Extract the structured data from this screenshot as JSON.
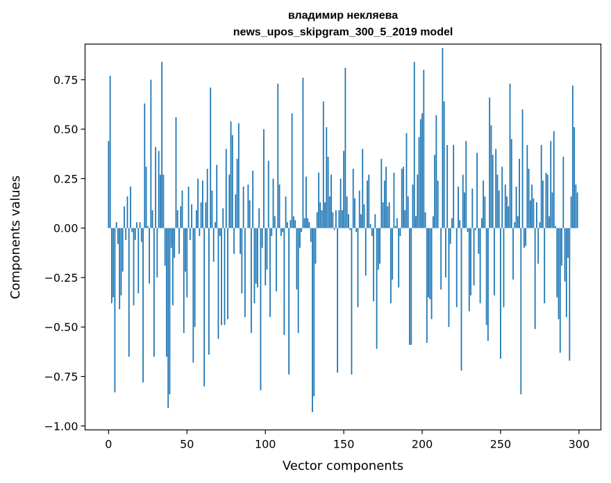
{
  "chart_data": {
    "type": "bar",
    "title_line1": "владимир некляева",
    "title_line2": "news_upos_skipgram_300_5_2019 model",
    "xlabel": "Vector components",
    "ylabel": "Components values",
    "xlim": [
      -15,
      314
    ],
    "ylim": [
      -1.02,
      0.93
    ],
    "xticks": [
      0,
      50,
      100,
      150,
      200,
      250,
      300
    ],
    "xtick_labels": [
      "0",
      "50",
      "100",
      "150",
      "200",
      "250",
      "300"
    ],
    "yticks": [
      -1.0,
      -0.75,
      -0.5,
      -0.25,
      0.0,
      0.25,
      0.5,
      0.75
    ],
    "ytick_labels": [
      "−1.00",
      "−0.75",
      "−0.50",
      "−0.25",
      "0.00",
      "0.25",
      "0.50",
      "0.75"
    ],
    "grid": false,
    "legend": "none",
    "bar_color": "#1f77b4",
    "x": [
      0,
      1,
      2,
      3,
      4,
      5,
      6,
      7,
      8,
      9,
      10,
      11,
      12,
      13,
      14,
      15,
      16,
      17,
      18,
      19,
      20,
      21,
      22,
      23,
      24,
      25,
      26,
      27,
      28,
      29,
      30,
      31,
      32,
      33,
      34,
      35,
      36,
      37,
      38,
      39,
      40,
      41,
      42,
      43,
      44,
      45,
      46,
      47,
      48,
      49,
      50,
      51,
      52,
      53,
      54,
      55,
      56,
      57,
      58,
      59,
      60,
      61,
      62,
      63,
      64,
      65,
      66,
      67,
      68,
      69,
      70,
      71,
      72,
      73,
      74,
      75,
      76,
      77,
      78,
      79,
      80,
      81,
      82,
      83,
      84,
      85,
      86,
      87,
      88,
      89,
      90,
      91,
      92,
      93,
      94,
      95,
      96,
      97,
      98,
      99,
      100,
      101,
      102,
      103,
      104,
      105,
      106,
      107,
      108,
      109,
      110,
      111,
      112,
      113,
      114,
      115,
      116,
      117,
      118,
      119,
      120,
      121,
      122,
      123,
      124,
      125,
      126,
      127,
      128,
      129,
      130,
      131,
      132,
      133,
      134,
      135,
      136,
      137,
      138,
      139,
      140,
      141,
      142,
      143,
      144,
      145,
      146,
      147,
      148,
      149,
      150,
      151,
      152,
      153,
      154,
      155,
      156,
      157,
      158,
      159,
      160,
      161,
      162,
      163,
      164,
      165,
      166,
      167,
      168,
      169,
      170,
      171,
      172,
      173,
      174,
      175,
      176,
      177,
      178,
      179,
      180,
      181,
      182,
      183,
      184,
      185,
      186,
      187,
      188,
      189,
      190,
      191,
      192,
      193,
      194,
      195,
      196,
      197,
      198,
      199,
      200,
      201,
      202,
      203,
      204,
      205,
      206,
      207,
      208,
      209,
      210,
      211,
      212,
      213,
      214,
      215,
      216,
      217,
      218,
      219,
      220,
      221,
      222,
      223,
      224,
      225,
      226,
      227,
      228,
      229,
      230,
      231,
      232,
      233,
      234,
      235,
      236,
      237,
      238,
      239,
      240,
      241,
      242,
      243,
      244,
      245,
      246,
      247,
      248,
      249,
      250,
      251,
      252,
      253,
      254,
      255,
      256,
      257,
      258,
      259,
      260,
      261,
      262,
      263,
      264,
      265,
      266,
      267,
      268,
      269,
      270,
      271,
      272,
      273,
      274,
      275,
      276,
      277,
      278,
      279,
      280,
      281,
      282,
      283,
      284,
      285,
      286,
      287,
      288,
      289,
      290,
      291,
      292,
      293,
      294,
      295,
      296,
      297,
      298,
      299
    ],
    "values": [
      0.44,
      0.77,
      -0.38,
      -0.35,
      -0.83,
      0.03,
      -0.08,
      -0.41,
      -0.34,
      -0.22,
      0.11,
      -0.06,
      0.16,
      -0.65,
      0.21,
      -0.02,
      -0.39,
      -0.06,
      0.03,
      -0.33,
      0.03,
      -0.07,
      -0.78,
      0.63,
      0.31,
      0.01,
      -0.28,
      0.75,
      0.09,
      -0.65,
      0.41,
      -0.25,
      0.39,
      0.27,
      0.84,
      0.27,
      -0.19,
      -0.65,
      -0.91,
      -0.84,
      -0.1,
      -0.39,
      -0.15,
      0.56,
      0.09,
      -0.13,
      0.11,
      0.19,
      -0.53,
      -0.22,
      -0.35,
      0.21,
      -0.06,
      0.12,
      -0.68,
      -0.5,
      0.09,
      0.25,
      -0.04,
      0.13,
      0.24,
      -0.8,
      0.13,
      0.3,
      -0.64,
      0.71,
      0.19,
      -0.17,
      0.03,
      0.32,
      -0.56,
      -0.04,
      -0.49,
      0.1,
      -0.49,
      0.4,
      -0.46,
      0.27,
      0.54,
      0.47,
      -0.13,
      0.17,
      0.35,
      0.53,
      -0.13,
      -0.33,
      0.21,
      -0.45,
      0.0,
      0.22,
      0.14,
      -0.53,
      0.29,
      -0.38,
      -0.28,
      -0.3,
      0.1,
      -0.82,
      -0.1,
      0.5,
      -0.29,
      -0.21,
      0.34,
      -0.45,
      -0.04,
      0.25,
      0.06,
      -0.32,
      0.73,
      0.22,
      -0.04,
      -0.02,
      -0.54,
      0.16,
      0.03,
      -0.74,
      0.04,
      0.58,
      0.06,
      0.04,
      -0.31,
      -0.53,
      -0.1,
      -0.02,
      0.76,
      0.05,
      0.26,
      0.05,
      0.03,
      -0.07,
      -0.93,
      -0.85,
      -0.18,
      0.08,
      0.28,
      0.13,
      0.09,
      0.64,
      0.13,
      0.51,
      0.36,
      0.16,
      0.27,
      0.08,
      -0.01,
      0.09,
      -0.73,
      0.09,
      0.25,
      0.09,
      0.39,
      0.81,
      0.16,
      0.07,
      -0.01,
      -0.74,
      0.3,
      0.15,
      -0.02,
      -0.4,
      0.19,
      0.07,
      0.4,
      0.12,
      -0.24,
      0.24,
      0.27,
      0.02,
      -0.04,
      -0.37,
      0.07,
      -0.61,
      -0.21,
      -0.18,
      0.35,
      0.13,
      0.24,
      0.31,
      0.11,
      0.13,
      -0.38,
      -0.26,
      0.28,
      0.01,
      0.05,
      -0.3,
      -0.04,
      0.3,
      0.31,
      0.09,
      0.48,
      0.16,
      -0.59,
      -0.59,
      0.22,
      0.84,
      0.06,
      0.27,
      0.46,
      0.55,
      0.58,
      0.8,
      0.08,
      -0.58,
      -0.35,
      -0.36,
      -0.46,
      0.06,
      0.37,
      0.57,
      0.24,
      0.0,
      -0.31,
      0.91,
      0.64,
      -0.25,
      0.42,
      -0.5,
      -0.08,
      0.05,
      0.42,
      0.0,
      -0.4,
      0.21,
      0.04,
      -0.72,
      0.27,
      0.18,
      0.44,
      -0.02,
      -0.42,
      -0.34,
      0.2,
      -0.29,
      -0.01,
      0.38,
      -0.13,
      -0.38,
      0.05,
      0.24,
      0.16,
      -0.49,
      -0.57,
      0.66,
      0.52,
      0.37,
      -0.34,
      0.4,
      0.27,
      0.19,
      -0.66,
      0.31,
      -0.4,
      0.22,
      0.16,
      0.11,
      0.73,
      0.45,
      -0.26,
      0.03,
      0.21,
      0.06,
      0.35,
      -0.84,
      0.6,
      -0.1,
      -0.09,
      0.42,
      0.3,
      0.14,
      0.22,
      0.15,
      -0.51,
      0.13,
      -0.18,
      0.03,
      0.42,
      0.24,
      -0.38,
      0.28,
      0.27,
      0.06,
      0.44,
      0.18,
      0.49,
      0.01,
      -0.35,
      -0.46,
      -0.63,
      -0.19,
      0.36,
      -0.27,
      -0.45,
      -0.15,
      -0.67,
      0.16,
      0.72,
      0.51,
      0.22,
      0.18
    ]
  }
}
